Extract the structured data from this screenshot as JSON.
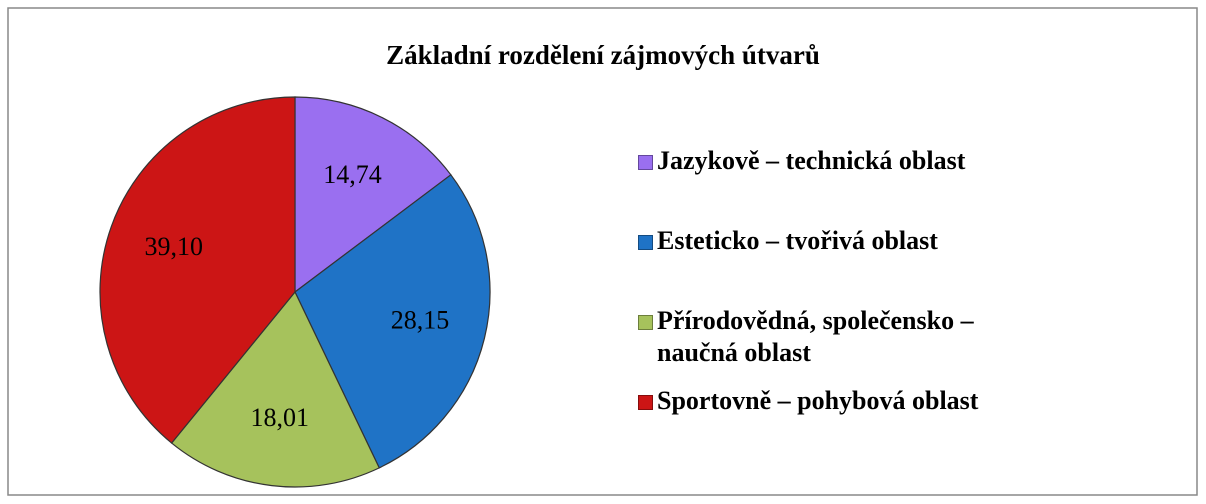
{
  "chart_data": {
    "type": "pie",
    "title": "Základní rozdělení zájmových útvarů",
    "categories": [
      "Jazykově – technická oblast",
      "Esteticko – tvořivá oblast",
      "Přírodovědná, společensko – naučná oblast",
      "Sportovně – pohybová oblast"
    ],
    "values": [
      14.74,
      28.15,
      18.01,
      39.1
    ],
    "value_labels": [
      "14,74",
      "28,15",
      "18,01",
      "39,10"
    ],
    "colors": [
      "#9a6ff0",
      "#1f73c6",
      "#a6c25c",
      "#cc1515"
    ],
    "legend": "right"
  }
}
